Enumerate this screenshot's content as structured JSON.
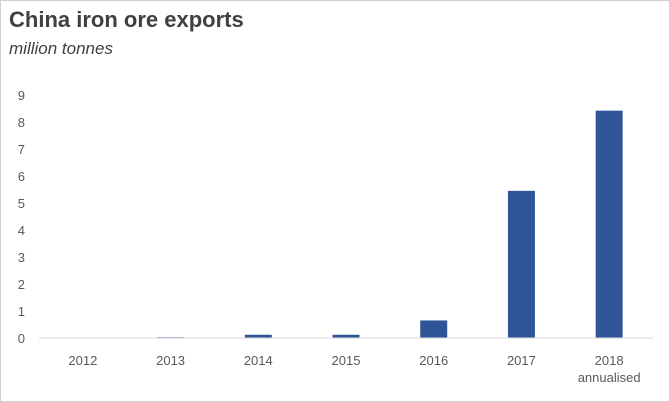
{
  "chart_data": {
    "type": "bar",
    "title": "China iron ore exports",
    "subtitle": "million tonnes",
    "categories": [
      "2012",
      "2013",
      "2014",
      "2015",
      "2016",
      "2017",
      "2018"
    ],
    "category_sublabels": [
      "",
      "",
      "",
      "",
      "",
      "",
      "annualised"
    ],
    "values": [
      0.0,
      0.03,
      0.12,
      0.12,
      0.65,
      5.45,
      8.42
    ],
    "ylim": [
      0,
      9
    ],
    "yticks": [
      0,
      1,
      2,
      3,
      4,
      5,
      6,
      7,
      8,
      9
    ],
    "grid": false,
    "bar_color": "#2F5597",
    "legend": "none"
  }
}
